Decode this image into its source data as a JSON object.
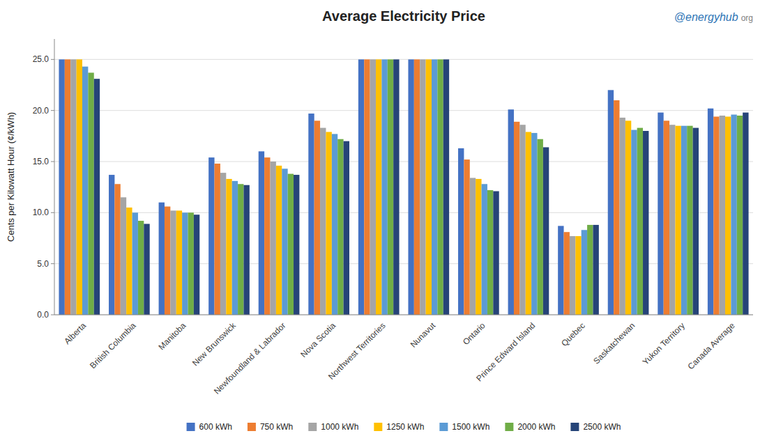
{
  "chart_data": {
    "type": "bar",
    "title": "Average Electricity Price",
    "ylabel": "Cents per Kilowatt Hour (¢/kWh)",
    "annotations": [
      "@energyhub",
      "org"
    ],
    "categories": [
      "Alberta",
      "British Columbia",
      "Manitoba",
      "New Brunswick",
      "Newfoundland & Labrador",
      "Nova Scotia",
      "Northwest Territories",
      "Nunavut",
      "Ontario",
      "Prince Edward Island",
      "Quebec",
      "Saskatchewan",
      "Yukon Territory",
      "Canada Average"
    ],
    "series": [
      {
        "name": "600 kWh",
        "color": "#4472c4",
        "values": [
          25.0,
          13.7,
          11.0,
          15.4,
          16.0,
          19.7,
          25.0,
          25.0,
          16.3,
          20.1,
          8.7,
          22.0,
          19.8,
          20.2
        ]
      },
      {
        "name": "750 kWh",
        "color": "#ed7d31",
        "values": [
          25.0,
          12.8,
          10.6,
          14.8,
          15.4,
          19.0,
          25.0,
          25.0,
          15.2,
          18.9,
          8.1,
          21.0,
          19.0,
          19.4
        ]
      },
      {
        "name": "1000 kWh",
        "color": "#a5a5a5",
        "values": [
          25.0,
          11.5,
          10.2,
          13.9,
          15.0,
          18.3,
          25.0,
          25.0,
          13.4,
          18.6,
          7.7,
          19.3,
          18.6,
          19.5
        ]
      },
      {
        "name": "1250 kWh",
        "color": "#ffc000",
        "values": [
          25.0,
          10.5,
          10.2,
          13.3,
          14.6,
          17.9,
          25.0,
          25.0,
          13.3,
          17.9,
          7.7,
          19.0,
          18.5,
          19.4
        ]
      },
      {
        "name": "1500 kWh",
        "color": "#5b9bd5",
        "values": [
          24.3,
          10.0,
          10.0,
          13.1,
          14.3,
          17.7,
          25.0,
          25.0,
          12.8,
          17.8,
          8.3,
          18.1,
          18.5,
          19.6
        ]
      },
      {
        "name": "2000 kWh",
        "color": "#70ad47",
        "values": [
          23.7,
          9.2,
          10.0,
          12.8,
          13.8,
          17.2,
          25.0,
          25.0,
          12.2,
          17.2,
          8.8,
          18.3,
          18.5,
          19.5
        ]
      },
      {
        "name": "2500 kWh",
        "color": "#264478",
        "values": [
          23.1,
          8.9,
          9.8,
          12.7,
          13.7,
          17.0,
          25.0,
          25.0,
          12.1,
          16.4,
          8.8,
          18.0,
          18.3,
          19.8
        ]
      }
    ],
    "ylim": [
      0,
      27
    ],
    "yticks": [
      {
        "value": 0.0,
        "label": "0.0"
      },
      {
        "value": 5.0,
        "label": "5.0"
      },
      {
        "value": 10.0,
        "label": "10.0"
      },
      {
        "value": 15.0,
        "label": "15.0"
      },
      {
        "value": 20.0,
        "label": "20.0"
      },
      {
        "value": 25.0,
        "label": "25.0"
      }
    ],
    "grid": true,
    "legend": "bottom"
  }
}
